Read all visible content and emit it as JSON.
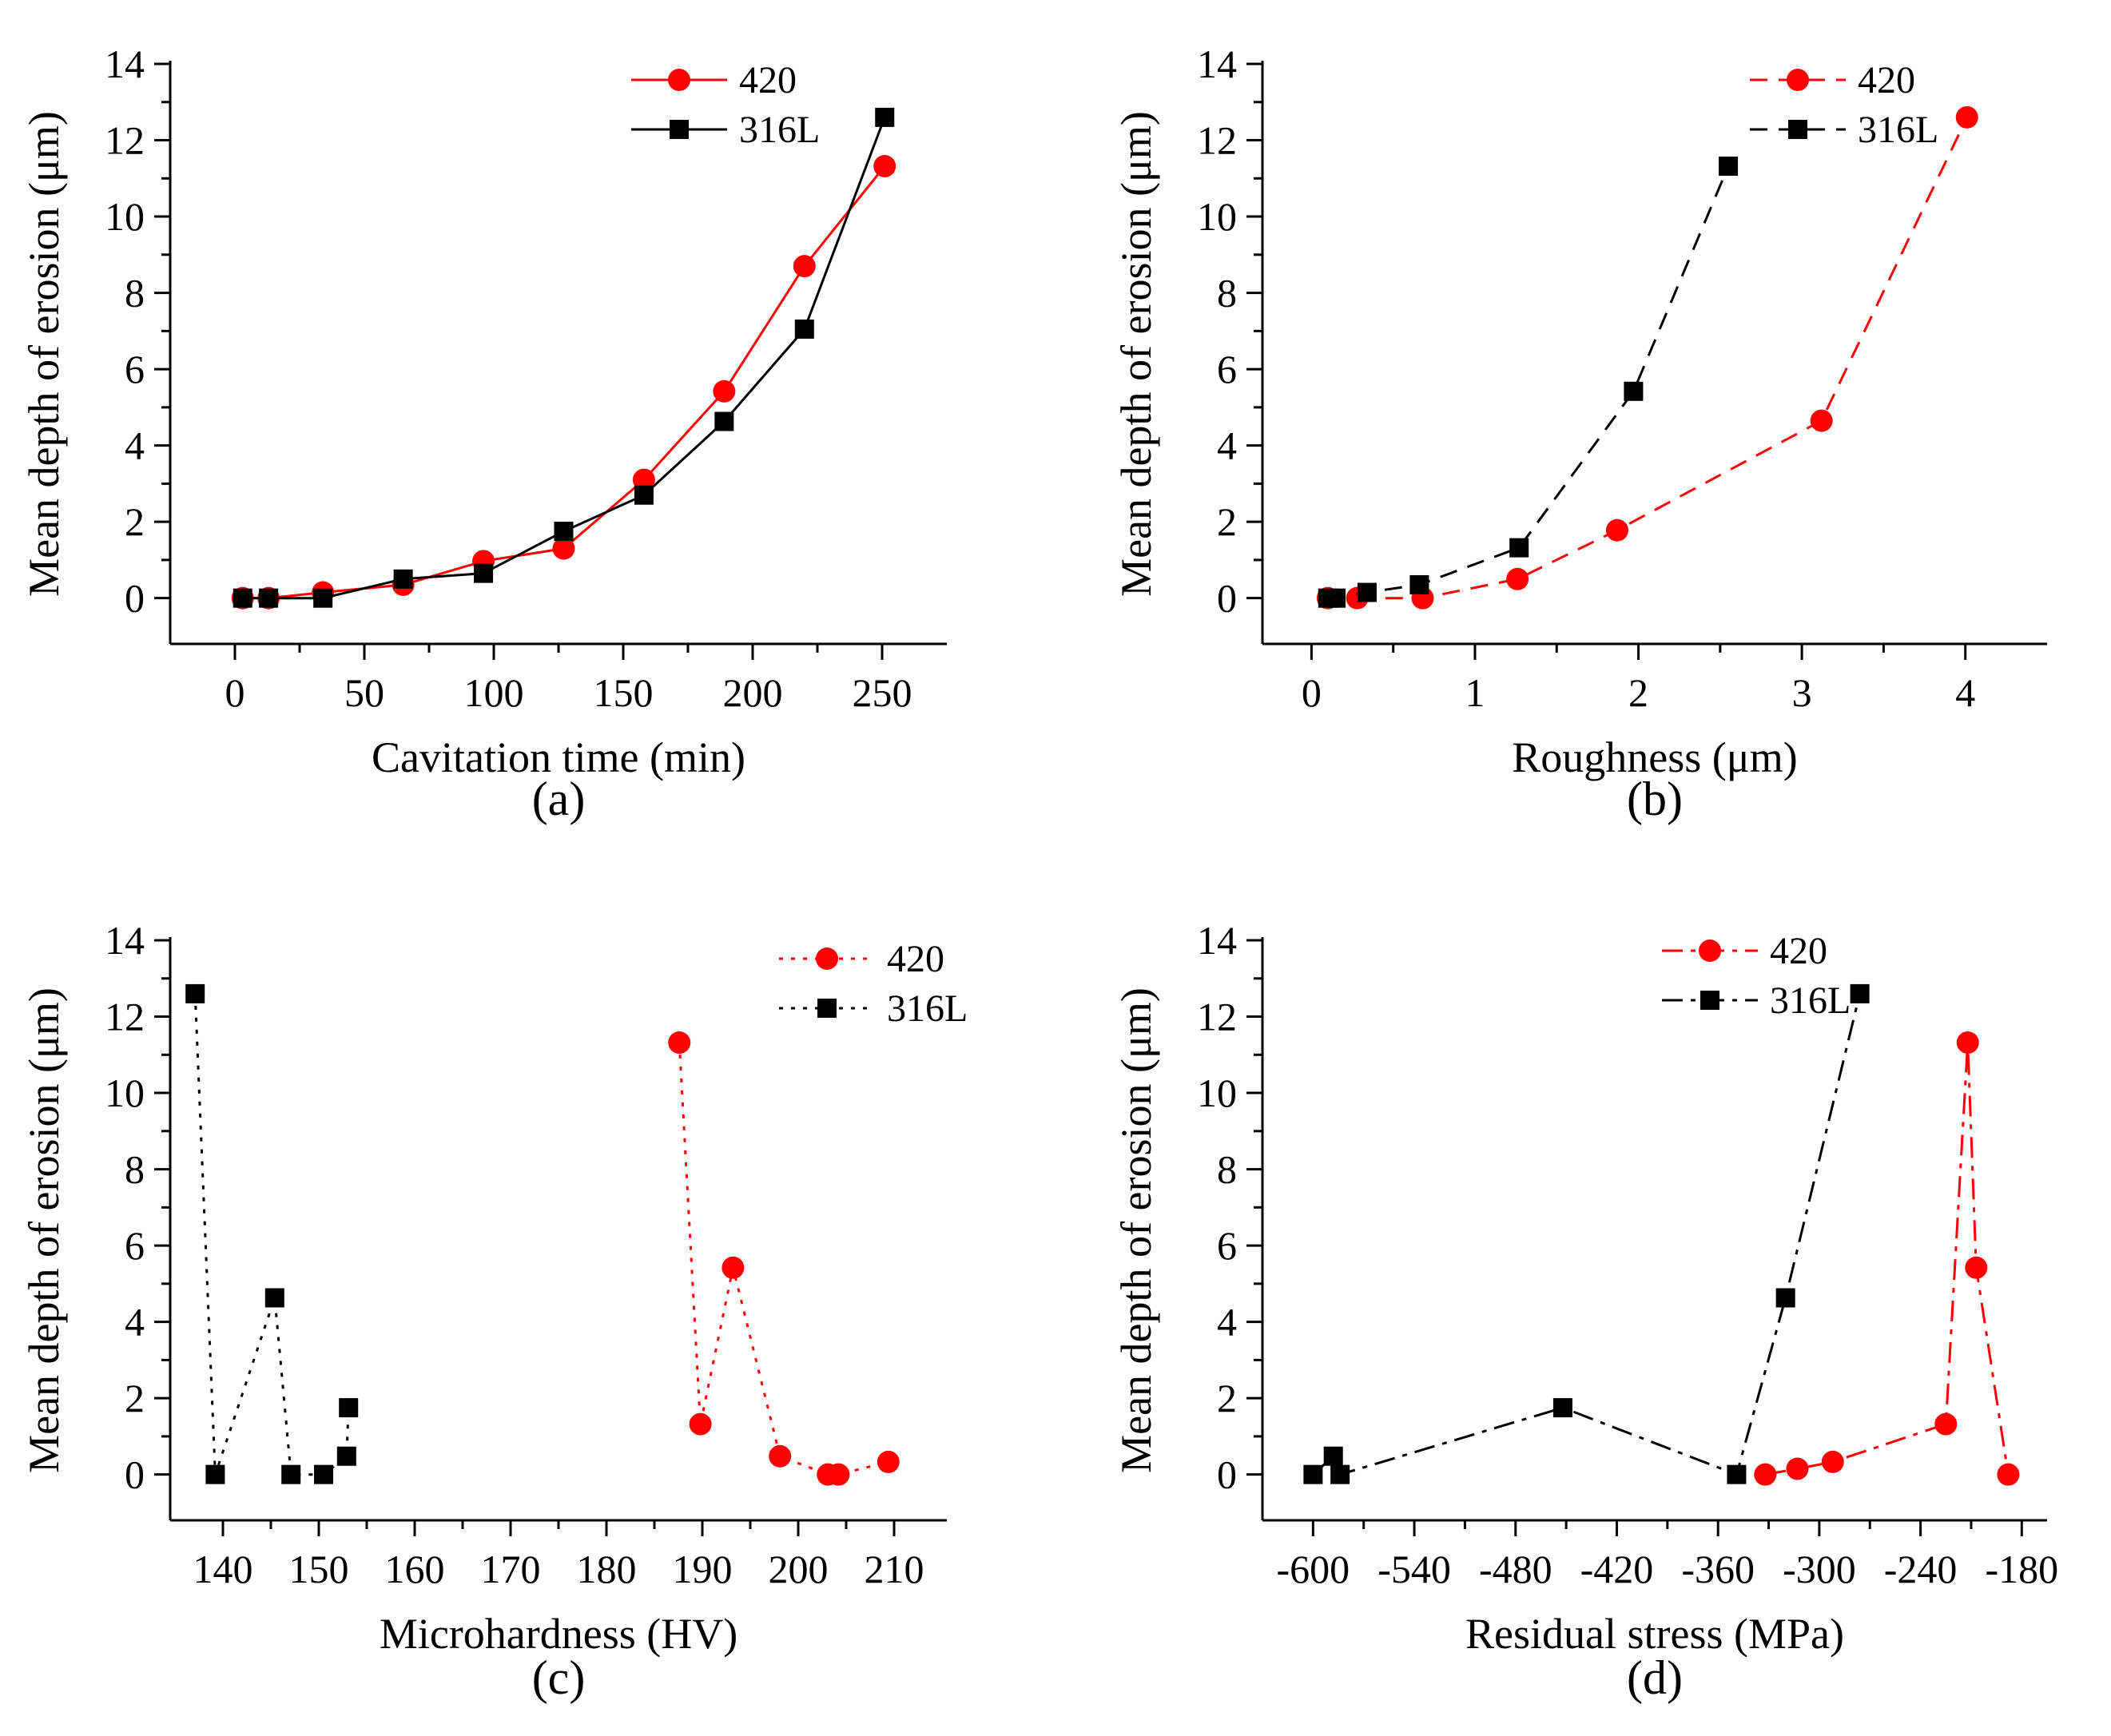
{
  "chart_data": [
    {
      "type": "line",
      "caption": "(a)",
      "xlabel": "Cavitation time (min)",
      "ylabel": "Mean depth of erosion  (μm)",
      "xlim": [
        -25,
        275
      ],
      "ylim": [
        -1.2,
        14
      ],
      "xticks": [
        0,
        50,
        100,
        150,
        200,
        250
      ],
      "yticks": [
        0,
        2,
        4,
        6,
        8,
        10,
        12,
        14
      ],
      "series": [
        {
          "name": "420",
          "color": "#ff0000",
          "marker": "circle",
          "dash": "solid",
          "x": [
            3,
            13,
            34,
            65,
            96,
            127,
            158,
            189,
            220,
            251
          ],
          "y": [
            0,
            0,
            0.15,
            0.35,
            0.97,
            1.3,
            3.1,
            5.42,
            8.7,
            11.32
          ]
        },
        {
          "name": "316L",
          "color": "#000000",
          "marker": "square",
          "dash": "solid",
          "x": [
            3,
            13,
            34,
            65,
            96,
            127,
            158,
            189,
            220,
            251
          ],
          "y": [
            0,
            0,
            0,
            0.5,
            0.65,
            1.75,
            2.7,
            4.63,
            7.05,
            12.6
          ]
        }
      ]
    },
    {
      "type": "line",
      "caption": "(b)",
      "xlabel": "Roughness (μm)",
      "ylabel": "Mean depth of erosion (μm)",
      "xlim": [
        -0.3,
        4.5
      ],
      "ylim": [
        -1.2,
        14
      ],
      "xticks": [
        0,
        1,
        2,
        3,
        4
      ],
      "yticks": [
        0,
        2,
        4,
        6,
        8,
        10,
        12,
        14
      ],
      "series": [
        {
          "name": "420",
          "color": "#ff0000",
          "marker": "circle",
          "dash": "dashed",
          "x": [
            0.1,
            0.28,
            0.68,
            1.26,
            1.87,
            3.12,
            4.01
          ],
          "y": [
            0,
            0,
            0,
            0.5,
            1.78,
            4.65,
            12.6
          ]
        },
        {
          "name": "316L",
          "color": "#000000",
          "marker": "square",
          "dash": "dashed",
          "x": [
            0.1,
            0.15,
            0.34,
            0.66,
            1.27,
            1.97,
            2.55
          ],
          "y": [
            0,
            0,
            0.15,
            0.35,
            1.32,
            5.42,
            11.32
          ]
        }
      ]
    },
    {
      "type": "line",
      "caption": "(c)",
      "xlabel": "Microhardness (HV)",
      "ylabel": "Mean depth of erosion (μm)",
      "xlim": [
        134.5,
        215.5
      ],
      "ylim": [
        -1.2,
        14
      ],
      "xticks": [
        140,
        150,
        160,
        170,
        180,
        190,
        200,
        210
      ],
      "yticks": [
        0,
        2,
        4,
        6,
        8,
        10,
        12,
        14
      ],
      "series": [
        {
          "name": "420",
          "color": "#ff0000",
          "marker": "circle",
          "dash": "dotted",
          "x": [
            187.6,
            189.8,
            193.2,
            198.1,
            203.1,
            204.2,
            209.4
          ],
          "y": [
            11.32,
            1.32,
            5.42,
            0.48,
            0,
            0,
            0.33
          ]
        },
        {
          "name": "316L",
          "color": "#000000",
          "marker": "square",
          "dash": "dotted",
          "x": [
            137.1,
            139.2,
            145.4,
            147.1,
            150.5,
            152.9,
            153.1
          ],
          "y": [
            12.6,
            0,
            4.63,
            0,
            0,
            0.48,
            1.75
          ]
        }
      ]
    },
    {
      "type": "line",
      "caption": "(d)",
      "xlabel": "Residual stress (MPa)",
      "ylabel": "Mean depth of erosion (μm)",
      "xlim": [
        -630,
        -165
      ],
      "ylim": [
        -1.2,
        14
      ],
      "xticks": [
        -600,
        -540,
        -480,
        -420,
        -360,
        -300,
        -240,
        -180
      ],
      "yticks": [
        0,
        2,
        4,
        6,
        8,
        10,
        12,
        14
      ],
      "series": [
        {
          "name": "420",
          "color": "#ff0000",
          "marker": "circle",
          "dash": "dashdot",
          "x": [
            -332,
            -313,
            -292,
            -225,
            -212,
            -207,
            -188
          ],
          "y": [
            0,
            0.15,
            0.33,
            1.32,
            11.32,
            5.42,
            0
          ]
        },
        {
          "name": "316L",
          "color": "#000000",
          "marker": "square",
          "dash": "dashdot",
          "x": [
            -600,
            -588,
            -584,
            -452,
            -349,
            -320,
            -276
          ],
          "y": [
            0,
            0.48,
            0,
            1.75,
            0,
            4.63,
            12.6
          ]
        }
      ]
    }
  ]
}
